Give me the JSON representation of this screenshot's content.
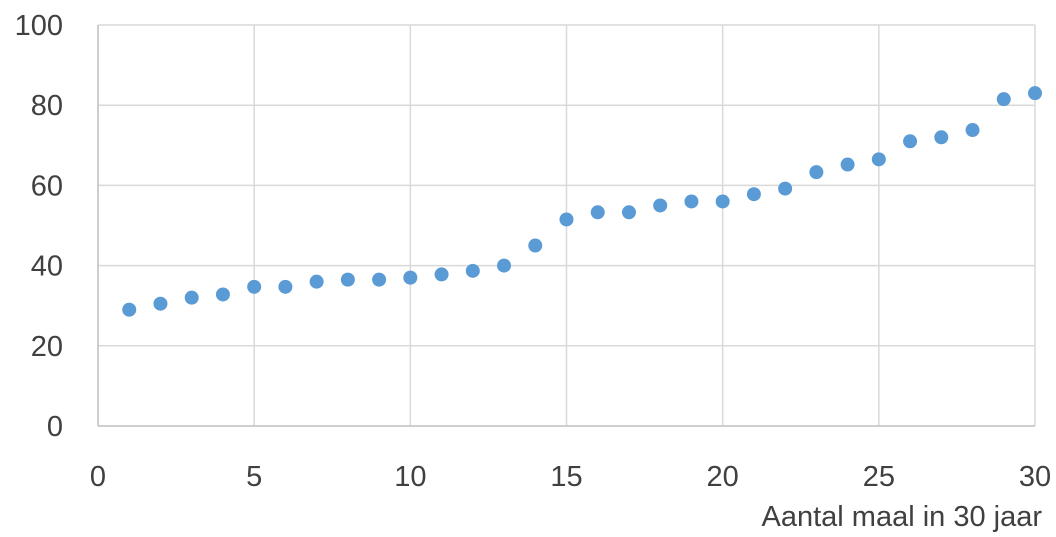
{
  "chart_data": {
    "type": "scatter",
    "title": "",
    "xlabel": "Aantal maal in 30 jaar",
    "ylabel": "",
    "xlim": [
      0,
      30
    ],
    "ylim": [
      0,
      100
    ],
    "x_ticks": [
      0,
      5,
      10,
      15,
      20,
      25,
      30
    ],
    "y_ticks": [
      0,
      20,
      40,
      60,
      80,
      100
    ],
    "grid": true,
    "legend": "none",
    "marker_color": "#5b9bd5",
    "series": [
      {
        "x": [
          1,
          2,
          3,
          4,
          5,
          6,
          7,
          8,
          9,
          10,
          11,
          12,
          13,
          14,
          15,
          16,
          17,
          18,
          19,
          20,
          21,
          22,
          23,
          24,
          25,
          26,
          27,
          28,
          29,
          30
        ],
        "y": [
          29,
          30.5,
          32,
          32.8,
          34.7,
          34.7,
          36,
          36.5,
          36.5,
          37,
          37.8,
          38.7,
          40,
          45,
          51.5,
          53.3,
          53.3,
          55,
          56,
          56,
          57.8,
          59.2,
          63.3,
          65.2,
          66.5,
          71,
          72,
          73.8,
          81.5,
          83
        ]
      }
    ]
  }
}
